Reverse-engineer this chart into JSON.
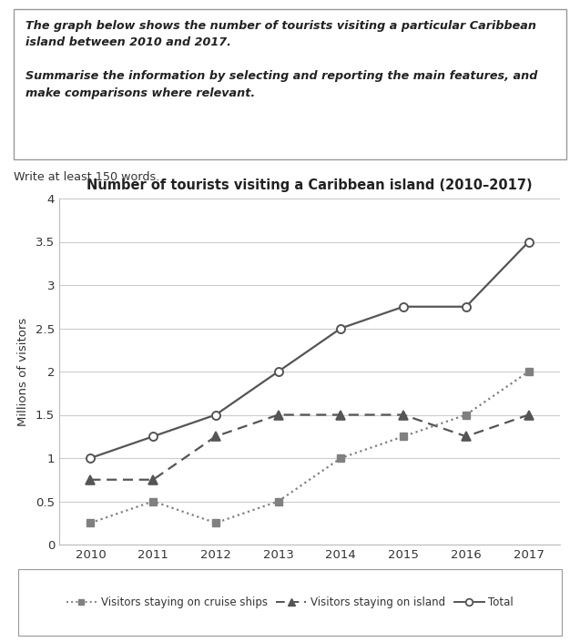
{
  "title": "Number of tourists visiting a Caribbean island (2010–2017)",
  "prompt_text": "The graph below shows the number of tourists visiting a particular Caribbean\nisland between 2010 and 2017.\n\nSummarise the information by selecting and reporting the main features, and\nmake comparisons where relevant.",
  "write_note": "Write at least 150 words.",
  "years": [
    2010,
    2011,
    2012,
    2013,
    2014,
    2015,
    2016,
    2017
  ],
  "cruise_ships": [
    0.25,
    0.5,
    0.25,
    0.5,
    1.0,
    1.25,
    1.5,
    2.0
  ],
  "island": [
    0.75,
    0.75,
    1.25,
    1.5,
    1.5,
    1.5,
    1.25,
    1.5
  ],
  "total": [
    1.0,
    1.25,
    1.5,
    2.0,
    2.5,
    2.75,
    2.75,
    3.5
  ],
  "ylabel": "Millions of visitors",
  "ylim": [
    0,
    4
  ],
  "yticks": [
    0,
    0.5,
    1.0,
    1.5,
    2.0,
    2.5,
    3.0,
    3.5,
    4.0
  ],
  "line_color": "#808080",
  "line_color_dark": "#555555",
  "background_color": "#ffffff",
  "grid_color": "#cccccc",
  "legend_cruise_label": "Visitors staying on cruise ships",
  "legend_island_label": "Visitors staying on island",
  "legend_total_label": "Total"
}
